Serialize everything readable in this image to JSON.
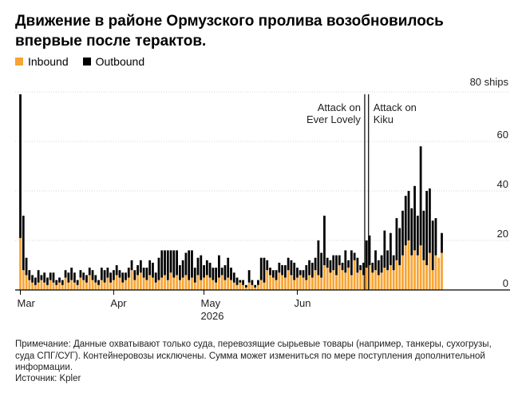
{
  "title": "Движение в районе Ормузского пролива возобновилось впервые после терактов.",
  "legend": {
    "inbound_label": "Inbound",
    "outbound_label": "Outbound",
    "inbound_color": "#F7A535",
    "outbound_color": "#000000"
  },
  "note": "Примечание: Данные охватывают только суда, перевозящие сырьевые товары (например, танкеры, сухогрузы, суда СПГ/СУГ). Контейнеровозы исключены. Сумма может измениться по мере поступления дополнительной информации.",
  "source": "Источник: Kpler",
  "chart_data": {
    "type": "bar",
    "stacked": true,
    "x_label": "2026",
    "x_ticks": [
      "Mar",
      "Apr",
      "May",
      "Jun"
    ],
    "y_unit_label": "80 ships",
    "y_ticks": [
      0,
      20,
      40,
      60,
      80
    ],
    "ylim": [
      0,
      80
    ],
    "grid": true,
    "annotations": [
      {
        "label_lines": [
          "Attack on",
          "Ever Lovely"
        ],
        "date": "Jun 23"
      },
      {
        "label_lines": [
          "Attack on",
          "Kiku"
        ],
        "date": "Jun 24"
      }
    ],
    "start_date": "2026-03-01",
    "series": [
      {
        "name": "Inbound",
        "color": "#F7A535",
        "values": [
          21,
          8,
          6,
          4,
          3,
          2,
          3,
          4,
          3,
          2,
          4,
          3,
          2,
          3,
          2,
          5,
          3,
          4,
          3,
          2,
          5,
          4,
          3,
          6,
          4,
          3,
          2,
          4,
          3,
          5,
          3,
          4,
          6,
          5,
          3,
          4,
          5,
          8,
          4,
          6,
          7,
          5,
          4,
          6,
          5,
          3,
          4,
          5,
          6,
          4,
          7,
          5,
          6,
          4,
          5,
          6,
          4,
          5,
          3,
          6,
          4,
          5,
          6,
          5,
          4,
          3,
          5,
          6,
          4,
          5,
          4,
          3,
          2,
          3,
          2,
          1,
          3,
          2,
          1,
          2,
          4,
          3,
          8,
          6,
          5,
          4,
          7,
          6,
          5,
          8,
          6,
          4,
          5,
          6,
          5,
          4,
          6,
          5,
          8,
          6,
          5,
          10,
          9,
          7,
          8,
          6,
          10,
          8,
          7,
          9,
          6,
          12,
          7,
          8,
          6,
          9,
          10,
          7,
          8,
          6,
          7,
          9,
          8,
          10,
          8,
          12,
          10,
          14,
          18,
          20,
          14,
          16,
          14,
          18,
          12,
          10,
          15,
          8,
          14,
          13,
          15
        ]
      },
      {
        "name": "Outbound",
        "color": "#000000",
        "values": [
          58,
          22,
          7,
          4,
          3,
          3,
          5,
          2,
          4,
          3,
          3,
          4,
          2,
          2,
          2,
          3,
          4,
          5,
          4,
          2,
          3,
          3,
          3,
          3,
          4,
          3,
          2,
          5,
          5,
          4,
          4,
          4,
          4,
          3,
          4,
          3,
          4,
          4,
          4,
          4,
          5,
          4,
          5,
          6,
          6,
          4,
          9,
          11,
          10,
          12,
          9,
          11,
          10,
          6,
          7,
          9,
          12,
          11,
          6,
          7,
          10,
          5,
          6,
          6,
          5,
          6,
          9,
          3,
          6,
          8,
          5,
          4,
          3,
          1,
          2,
          1,
          5,
          2,
          1,
          2,
          9,
          10,
          4,
          3,
          3,
          4,
          4,
          4,
          5,
          5,
          6,
          7,
          4,
          2,
          3,
          6,
          6,
          6,
          5,
          14,
          10,
          20,
          4,
          5,
          6,
          8,
          4,
          3,
          9,
          3,
          10,
          3,
          6,
          2,
          5,
          11,
          12,
          4,
          8,
          6,
          7,
          15,
          8,
          13,
          6,
          17,
          15,
          18,
          20,
          20,
          19,
          26,
          16,
          40,
          20,
          30,
          26,
          20,
          15,
          0,
          8
        ]
      }
    ]
  }
}
